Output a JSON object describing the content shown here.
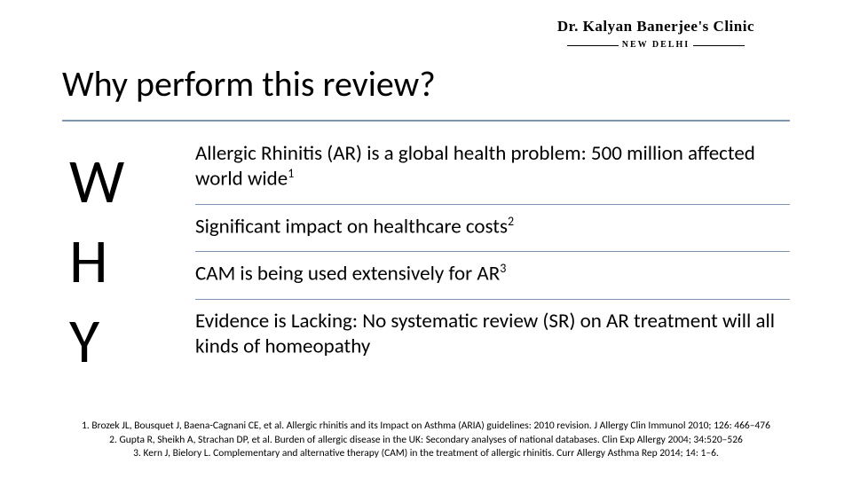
{
  "logo": {
    "line1": "Dr. Kalyan Banerjee's Clinic",
    "line2": "NEW DELHI"
  },
  "title": "Why perform this review?",
  "why_letters": [
    "W",
    "H",
    "Y"
  ],
  "points": [
    {
      "text": "Allergic Rhinitis (AR) is a global health problem: 500 million affected world wide",
      "sup": "1"
    },
    {
      "text": "Significant impact on healthcare costs",
      "sup": "2"
    },
    {
      "text": "CAM is being used extensively for AR",
      "sup": "3"
    },
    {
      "text": "Evidence is Lacking: No systematic review (SR) on AR treatment will all kinds of homeopathy",
      "sup": ""
    }
  ],
  "references": [
    "1.   Brozek JL, Bousquet J, Baena-Cagnani CE, et al. Allergic rhinitis and its Impact on Asthma (ARIA) guidelines: 2010 revision. J Allergy Clin Immunol 2010; 126: 466–476",
    "2.   Gupta R, Sheikh A, Strachan DP, et al. Burden of allergic disease in the UK: Secondary analyses of national databases. Clin Exp Allergy 2004; 34:520–526",
    "3.   Kern J, Bielory L. Complementary and alternative therapy (CAM) in the treatment of allergic rhinitis. Curr Allergy Asthma Rep 2014; 14: 1–6."
  ],
  "colors": {
    "rule": "#7f97b3",
    "background": "#ffffff",
    "text": "#000000"
  },
  "typography": {
    "title_fontsize": 40,
    "body_fontsize": 23,
    "why_fontsize": 70,
    "ref_fontsize": 11.5
  }
}
